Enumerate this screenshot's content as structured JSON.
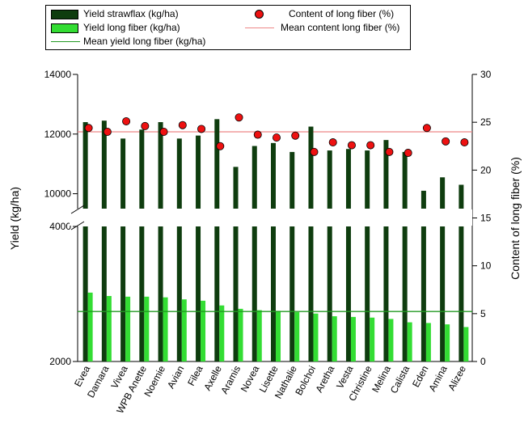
{
  "chart_data": {
    "type": "bar",
    "categories": [
      "Evea",
      "Damara",
      "Vivea",
      "WPB Anette",
      "Noemie",
      "Avian",
      "Filea",
      "Axelle",
      "Aramis",
      "Novea",
      "Lisette",
      "Nathalie",
      "Bolchoi",
      "Aretha",
      "Vesta",
      "Christine",
      "Melina",
      "Calista",
      "Eden",
      "Amina",
      "Alizee"
    ],
    "series": [
      {
        "name": "Yield strawflax (kg/ha)",
        "type": "bar",
        "axis": "left",
        "color": "#0f3d0f",
        "values": [
          12400,
          12450,
          11850,
          12150,
          12400,
          11850,
          11950,
          12500,
          10900,
          11600,
          11700,
          11400,
          12250,
          11450,
          11500,
          11450,
          11800,
          11400,
          10100,
          10550,
          10300
        ]
      },
      {
        "name": "Yield long fiber (kg/ha)",
        "type": "bar",
        "axis": "left",
        "color": "#33dd33",
        "values": [
          3020,
          2970,
          2960,
          2960,
          2950,
          2920,
          2900,
          2830,
          2780,
          2760,
          2750,
          2730,
          2710,
          2670,
          2660,
          2650,
          2630,
          2580,
          2570,
          2550,
          2510
        ]
      },
      {
        "name": "Content of long fiber (%)",
        "type": "scatter",
        "axis": "right",
        "color": "#ee1111",
        "values": [
          24.4,
          24.0,
          25.1,
          24.6,
          24.0,
          24.7,
          24.3,
          22.5,
          25.5,
          23.7,
          23.4,
          23.6,
          21.9,
          22.9,
          22.6,
          22.6,
          21.9,
          21.8,
          24.4,
          23.0,
          22.9
        ]
      }
    ],
    "reference_lines": [
      {
        "name": "Mean content long fiber (%)",
        "axis": "right",
        "value": 24.0,
        "color": "#ee8888"
      },
      {
        "name": "Mean yield long fiber (kg/ha)",
        "axis": "left",
        "value": 2740,
        "color": "#229922"
      }
    ],
    "y_left": {
      "label": "Yield (kg/ha)",
      "broken": true,
      "segments": [
        {
          "range": [
            2000,
            4000
          ],
          "ticks": [
            2000,
            4000
          ]
        },
        {
          "range": [
            9500,
            14000
          ],
          "ticks": [
            10000,
            12000,
            14000
          ]
        }
      ]
    },
    "y_right": {
      "label": "Content of long fiber (%)",
      "range": [
        0,
        30
      ],
      "ticks": [
        0,
        5,
        10,
        15,
        20,
        25,
        30
      ]
    },
    "legend": {
      "placement": "top"
    }
  }
}
